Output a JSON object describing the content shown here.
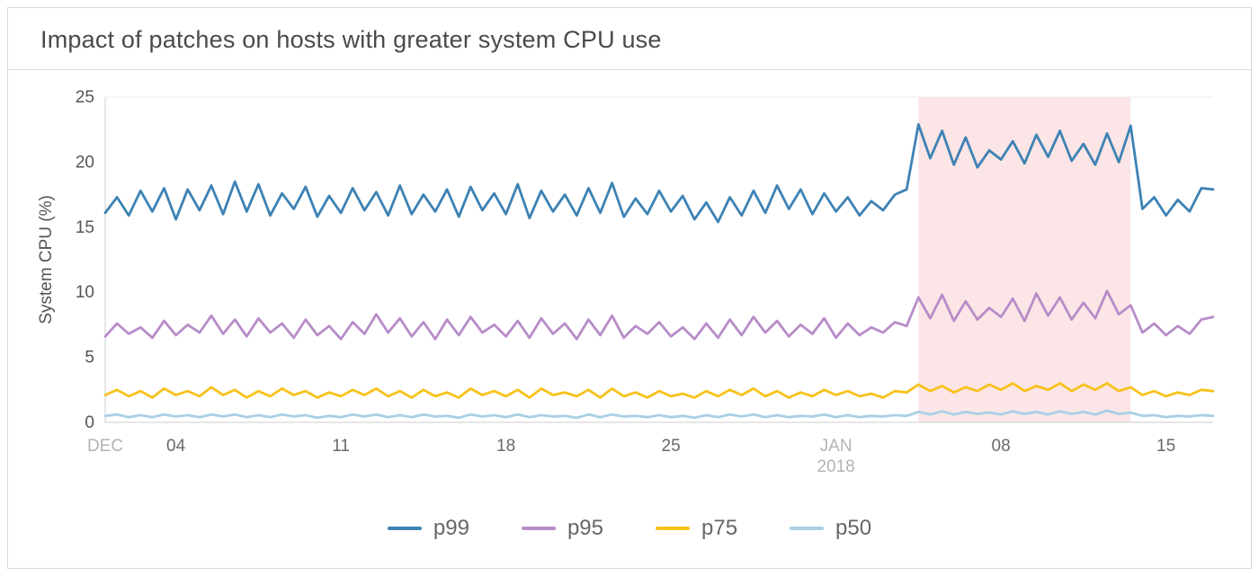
{
  "chart_data": {
    "type": "line",
    "title": "Impact of patches on hosts with greater system CPU use",
    "xlabel": "",
    "ylabel": "System CPU (%)",
    "ylim": [
      0,
      25
    ],
    "yticks": [
      0,
      5,
      10,
      15,
      20,
      25
    ],
    "xlim": [
      0,
      47
    ],
    "x_unit": "days (0 = Dec 1, 2017)",
    "x_start": 0,
    "x_step": 0.5,
    "xticks": [
      {
        "x": 0,
        "label": "DEC",
        "muted": true
      },
      {
        "x": 3,
        "label": "04"
      },
      {
        "x": 10,
        "label": "11"
      },
      {
        "x": 17,
        "label": "18"
      },
      {
        "x": 24,
        "label": "25"
      },
      {
        "x": 31,
        "label": "JAN",
        "sublabel": "2018",
        "muted": true
      },
      {
        "x": 38,
        "label": "08"
      },
      {
        "x": 45,
        "label": "15"
      }
    ],
    "highlight_region": {
      "x_from": 34.5,
      "x_to": 43.5,
      "color": "#f9cfd2",
      "opacity": 0.55
    },
    "legend_position": "bottom",
    "grid": false,
    "series": [
      {
        "name": "p99",
        "color": "#3d82b4",
        "values": [
          16.1,
          17.3,
          15.9,
          17.8,
          16.2,
          18.0,
          15.6,
          17.9,
          16.3,
          18.2,
          16.0,
          18.5,
          16.2,
          18.3,
          15.9,
          17.6,
          16.4,
          18.1,
          15.8,
          17.4,
          16.1,
          18.0,
          16.3,
          17.7,
          15.9,
          18.2,
          16.0,
          17.5,
          16.2,
          17.9,
          15.8,
          18.1,
          16.3,
          17.6,
          16.0,
          18.3,
          15.7,
          17.8,
          16.2,
          17.5,
          15.9,
          18.0,
          16.1,
          18.4,
          15.8,
          17.2,
          16.0,
          17.8,
          16.2,
          17.4,
          15.6,
          16.9,
          15.4,
          17.3,
          15.9,
          17.8,
          16.1,
          18.2,
          16.4,
          17.9,
          16.0,
          17.6,
          16.2,
          17.3,
          15.9,
          17.0,
          16.3,
          17.5,
          17.9,
          22.9,
          20.3,
          22.4,
          19.8,
          21.9,
          19.6,
          20.9,
          20.2,
          21.6,
          19.9,
          22.1,
          20.4,
          22.4,
          20.1,
          21.4,
          19.8,
          22.2,
          20.0,
          22.8,
          16.4,
          17.3,
          15.9,
          17.1,
          16.2,
          18.0,
          17.9
        ]
      },
      {
        "name": "p95",
        "color": "#b78cc8",
        "values": [
          6.6,
          7.6,
          6.8,
          7.3,
          6.5,
          7.8,
          6.7,
          7.5,
          6.9,
          8.2,
          6.8,
          7.9,
          6.6,
          8.0,
          6.9,
          7.6,
          6.5,
          7.9,
          6.7,
          7.4,
          6.4,
          7.7,
          6.8,
          8.3,
          6.9,
          8.0,
          6.6,
          7.7,
          6.4,
          7.9,
          6.7,
          8.1,
          6.9,
          7.5,
          6.6,
          7.8,
          6.5,
          8.0,
          6.8,
          7.6,
          6.4,
          7.9,
          6.7,
          8.2,
          6.5,
          7.4,
          6.8,
          7.7,
          6.6,
          7.3,
          6.4,
          7.6,
          6.5,
          7.9,
          6.7,
          8.1,
          6.9,
          7.8,
          6.6,
          7.5,
          6.8,
          8.0,
          6.5,
          7.6,
          6.7,
          7.3,
          6.9,
          7.7,
          7.4,
          9.6,
          8.0,
          9.8,
          7.8,
          9.3,
          7.9,
          8.8,
          8.1,
          9.5,
          7.8,
          9.9,
          8.2,
          9.6,
          7.9,
          9.2,
          8.0,
          10.1,
          8.3,
          9.0,
          6.9,
          7.6,
          6.7,
          7.4,
          6.8,
          7.9,
          8.1
        ]
      },
      {
        "name": "p75",
        "color": "#f7c21b",
        "values": [
          2.1,
          2.5,
          2.0,
          2.4,
          1.9,
          2.6,
          2.1,
          2.4,
          2.0,
          2.7,
          2.1,
          2.5,
          1.9,
          2.4,
          2.0,
          2.6,
          2.1,
          2.4,
          1.9,
          2.3,
          2.0,
          2.5,
          2.1,
          2.6,
          2.0,
          2.4,
          1.9,
          2.5,
          2.0,
          2.3,
          1.9,
          2.6,
          2.1,
          2.4,
          2.0,
          2.5,
          1.9,
          2.6,
          2.1,
          2.3,
          2.0,
          2.5,
          1.9,
          2.6,
          2.0,
          2.3,
          1.9,
          2.4,
          2.0,
          2.2,
          1.9,
          2.4,
          2.0,
          2.5,
          2.1,
          2.6,
          2.0,
          2.4,
          1.9,
          2.3,
          2.0,
          2.5,
          2.1,
          2.4,
          2.0,
          2.2,
          1.9,
          2.4,
          2.3,
          2.9,
          2.4,
          2.8,
          2.3,
          2.7,
          2.4,
          2.9,
          2.5,
          3.0,
          2.4,
          2.8,
          2.5,
          3.0,
          2.4,
          2.9,
          2.5,
          3.0,
          2.4,
          2.7,
          2.1,
          2.4,
          2.0,
          2.3,
          2.1,
          2.5,
          2.4
        ]
      },
      {
        "name": "p50",
        "color": "#a8cfe6",
        "values": [
          0.5,
          0.6,
          0.4,
          0.55,
          0.4,
          0.6,
          0.45,
          0.55,
          0.4,
          0.6,
          0.45,
          0.6,
          0.4,
          0.55,
          0.4,
          0.6,
          0.45,
          0.55,
          0.35,
          0.5,
          0.4,
          0.6,
          0.45,
          0.6,
          0.4,
          0.55,
          0.4,
          0.6,
          0.45,
          0.5,
          0.35,
          0.6,
          0.45,
          0.55,
          0.4,
          0.6,
          0.4,
          0.55,
          0.45,
          0.5,
          0.35,
          0.6,
          0.4,
          0.6,
          0.45,
          0.5,
          0.4,
          0.55,
          0.4,
          0.5,
          0.35,
          0.55,
          0.4,
          0.6,
          0.45,
          0.6,
          0.4,
          0.55,
          0.4,
          0.5,
          0.45,
          0.6,
          0.4,
          0.55,
          0.4,
          0.5,
          0.45,
          0.55,
          0.5,
          0.8,
          0.6,
          0.85,
          0.6,
          0.8,
          0.65,
          0.75,
          0.6,
          0.85,
          0.65,
          0.8,
          0.6,
          0.85,
          0.65,
          0.8,
          0.6,
          0.9,
          0.65,
          0.75,
          0.5,
          0.55,
          0.4,
          0.5,
          0.45,
          0.55,
          0.5
        ]
      }
    ]
  }
}
